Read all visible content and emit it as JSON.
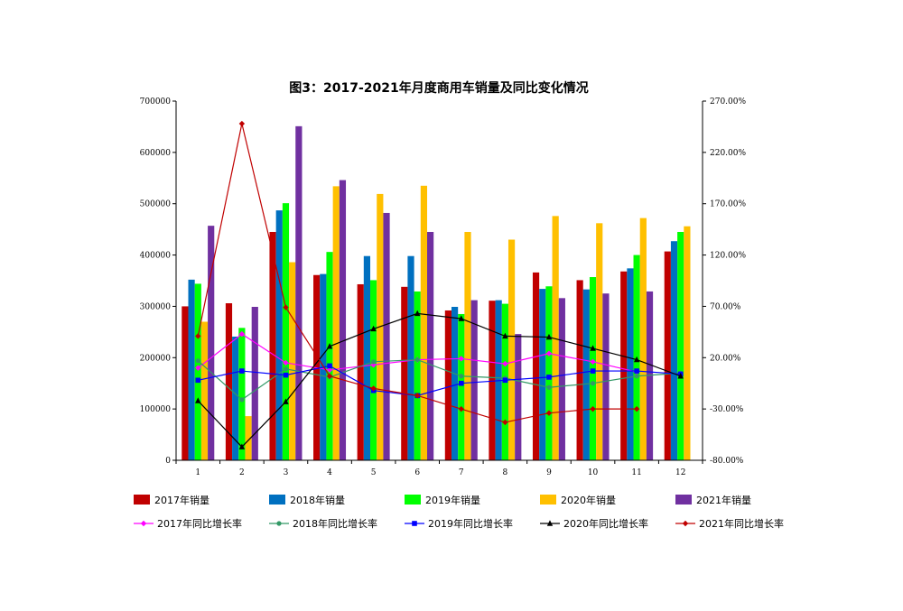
{
  "chart_data": {
    "type": "bar+line",
    "title": "图3：2017-2021年月度商用车销量及同比变化情况",
    "categories": [
      "1",
      "2",
      "3",
      "4",
      "5",
      "6",
      "7",
      "8",
      "9",
      "10",
      "11",
      "12"
    ],
    "y_left": {
      "min": 0,
      "max": 700000,
      "step": 100000,
      "ticks": [
        "0",
        "100000",
        "200000",
        "300000",
        "400000",
        "500000",
        "600000",
        "700000"
      ]
    },
    "y_right": {
      "min": -80,
      "max": 270,
      "step": 50,
      "ticks": [
        "-80.00%",
        "-30.00%",
        "20.00%",
        "70.00%",
        "120.00%",
        "170.00%",
        "220.00%",
        "270.00%"
      ]
    },
    "bar_series": [
      {
        "name": "2017年销量",
        "color": "#c00000",
        "values": [
          300000,
          306000,
          445000,
          361000,
          343000,
          338000,
          292000,
          311000,
          366000,
          351000,
          368000,
          407000
        ]
      },
      {
        "name": "2018年销量",
        "color": "#0070c0",
        "values": [
          352000,
          241000,
          487000,
          363000,
          398000,
          398000,
          299000,
          312000,
          334000,
          333000,
          374000,
          427000
        ]
      },
      {
        "name": "2019年销量",
        "color": "#00ff00",
        "values": [
          344000,
          258000,
          501000,
          406000,
          351000,
          329000,
          285000,
          305000,
          339000,
          357000,
          400000,
          445000
        ]
      },
      {
        "name": "2020年销量",
        "color": "#ffc000",
        "values": [
          270000,
          86000,
          386000,
          534000,
          519000,
          535000,
          445000,
          430000,
          476000,
          462000,
          472000,
          456000
        ]
      },
      {
        "name": "2021年销量",
        "color": "#7030a0",
        "values": [
          457000,
          299000,
          651000,
          546000,
          482000,
          445000,
          312000,
          246000,
          316000,
          325000,
          329000,
          null
        ]
      }
    ],
    "line_series": [
      {
        "name": "2017年同比增长率",
        "color": "#ff00ff",
        "marker": "diamond",
        "values": [
          10,
          43,
          15,
          8,
          13,
          18,
          19,
          14,
          24,
          16,
          6,
          null
        ]
      },
      {
        "name": "2018年同比增长率",
        "color": "#339966",
        "marker": "circle",
        "values": [
          17,
          -21,
          9,
          1,
          16,
          18,
          2,
          0,
          -9,
          -5,
          2,
          5
        ]
      },
      {
        "name": "2019年同比增长率",
        "color": "#0000ff",
        "marker": "square",
        "values": [
          -2,
          7,
          3,
          12,
          -12,
          -17,
          -5,
          -2,
          1,
          7,
          7,
          4
        ]
      },
      {
        "name": "2020年同比增长率",
        "color": "#000000",
        "marker": "triangle",
        "values": [
          -22,
          -67,
          -23,
          31,
          48,
          63,
          58,
          41,
          40,
          29,
          18,
          2
        ]
      },
      {
        "name": "2021年同比增长率",
        "color": "#c00000",
        "marker": "diamond",
        "values": [
          41,
          248,
          69,
          2,
          -10,
          -17,
          -30,
          -43,
          -34,
          -30,
          -30,
          null
        ]
      }
    ],
    "legend_position": "bottom",
    "grid": false
  }
}
